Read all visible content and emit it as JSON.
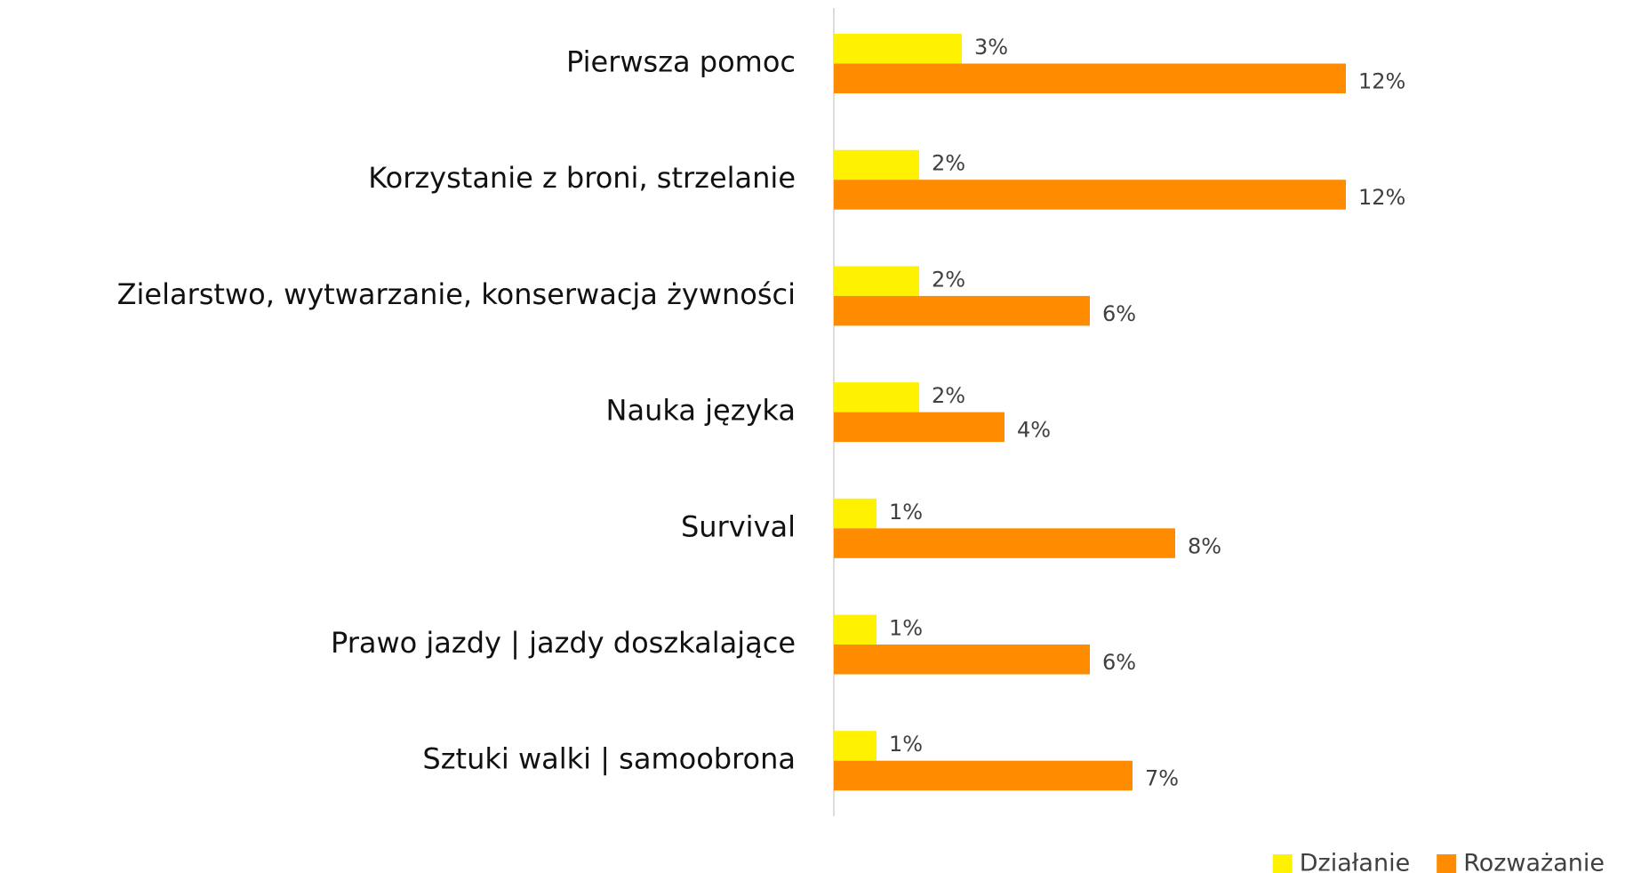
{
  "chart_data": {
    "type": "hbar",
    "categories": [
      "Pierwsza pomoc",
      "Korzystanie z broni, strzelanie",
      "Zielarstwo, wytwarzanie, konserwacja żywności",
      "Nauka języka",
      "Survival",
      "Prawo jazdy | jazdy doszkalające",
      "Sztuki walki | samoobrona"
    ],
    "series": [
      {
        "name": "Działanie",
        "color": "#fff200",
        "values": [
          3,
          2,
          2,
          2,
          1,
          1,
          1
        ],
        "value_labels": [
          "3%",
          "2%",
          "2%",
          "2%",
          "1%",
          "1%",
          "1%"
        ]
      },
      {
        "name": "Rozważanie",
        "color": "#ff8c00",
        "values": [
          12,
          12,
          6,
          4,
          8,
          6,
          7
        ],
        "value_labels": [
          "12%",
          "12%",
          "6%",
          "4%",
          "8%",
          "6%",
          "7%"
        ]
      }
    ],
    "legend": "bottom-right"
  }
}
